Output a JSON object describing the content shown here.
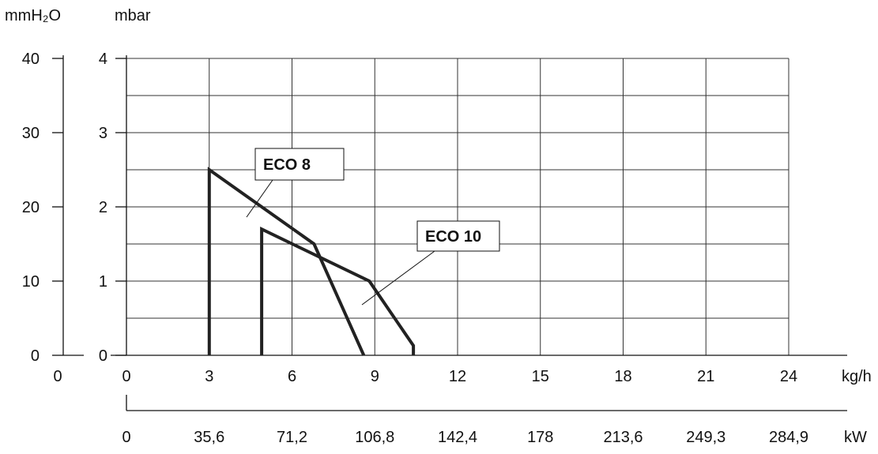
{
  "chart_data": {
    "type": "line",
    "left_axis": {
      "label": "mmH₂O",
      "ticks": [
        "40",
        "30",
        "20",
        "10",
        "0"
      ],
      "range": [
        0,
        40
      ]
    },
    "y_axis": {
      "label": "mbar",
      "ticks": [
        "4",
        "3",
        "2",
        "1",
        "0"
      ],
      "range": [
        0,
        4
      ],
      "minor_step": 0.5
    },
    "x_axis": {
      "label": "kg/h",
      "ticks": [
        "0",
        "3",
        "6",
        "9",
        "12",
        "15",
        "18",
        "21",
        "24"
      ],
      "range": [
        0,
        24
      ]
    },
    "x_axis_secondary": {
      "label": "kW",
      "ticks": [
        "0",
        "35,6",
        "71,2",
        "106,8",
        "142,4",
        "178",
        "213,6",
        "249,3",
        "284,9"
      ]
    },
    "grid": true,
    "series": [
      {
        "name": "ECO 8",
        "x": [
          3.0,
          3.0,
          6.8,
          8.6
        ],
        "y": [
          0.0,
          2.5,
          1.5,
          0.0
        ],
        "color": "#222222"
      },
      {
        "name": "ECO 10",
        "x": [
          4.9,
          4.9,
          8.8,
          10.4,
          10.4
        ],
        "y": [
          0.0,
          1.7,
          1.0,
          0.13,
          0.0
        ],
        "color": "#222222"
      }
    ],
    "annotations": [
      {
        "text": "ECO 8",
        "series": "ECO 8"
      },
      {
        "text": "ECO 10",
        "series": "ECO 10"
      }
    ]
  }
}
